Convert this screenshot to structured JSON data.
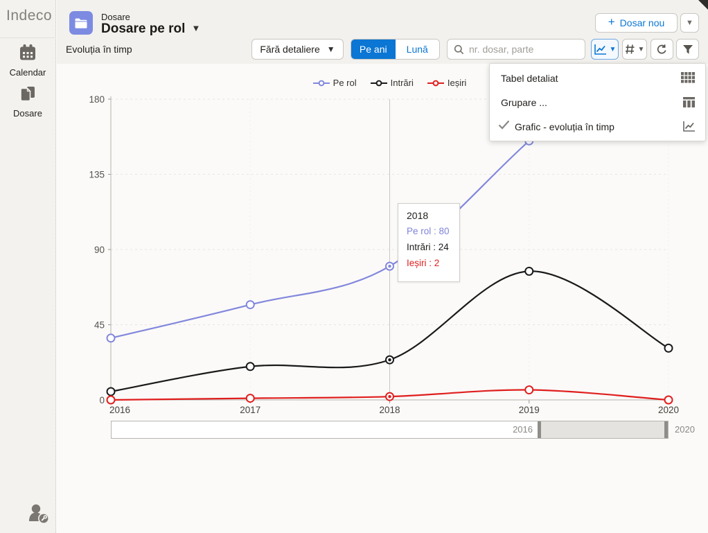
{
  "app": {
    "logo": "Indeco",
    "accent_color": "#0b76d3"
  },
  "sidebar": {
    "items": [
      {
        "label": "Calendar",
        "icon": "calendar-icon"
      },
      {
        "label": "Dosare",
        "icon": "documents-icon"
      }
    ],
    "user_icon": "user-settings-icon"
  },
  "header": {
    "context_label": "Dosare",
    "title": "Dosare pe rol",
    "subtitle": "Evoluția în timp",
    "new_button_label": "Dosar nou",
    "object_icon": "folder-icon"
  },
  "toolbar": {
    "detail_dropdown_label": "Fără detaliere",
    "period_options": [
      {
        "label": "Pe ani",
        "active": true
      },
      {
        "label": "Lună",
        "active": false
      }
    ],
    "search_placeholder": "nr. dosar, parte",
    "icon_buttons": [
      {
        "name": "chart-view-button",
        "icon": "line-chart-icon",
        "active": true
      },
      {
        "name": "numbering-button",
        "icon": "hash-icon",
        "active": false
      },
      {
        "name": "refresh-button",
        "icon": "refresh-icon",
        "active": false
      },
      {
        "name": "filter-button",
        "icon": "funnel-icon",
        "active": false
      }
    ]
  },
  "menu": {
    "items": [
      {
        "label": "Tabel detaliat",
        "icon": "table-icon",
        "checked": false
      },
      {
        "label": "Grupare ...",
        "icon": "columns-icon",
        "checked": false
      },
      {
        "label": "Grafic - evoluția în timp",
        "icon": "line-chart-icon",
        "checked": true
      }
    ]
  },
  "tooltip": {
    "title": "2018",
    "rows": [
      {
        "text": "Pe rol : 80",
        "color": "#7f84d9"
      },
      {
        "text": "Intrări : 24",
        "color": "#201e1b"
      },
      {
        "text": "Ieșiri : 2",
        "color": "#e01e1e"
      }
    ]
  },
  "chart_data": {
    "type": "line",
    "x": [
      2016,
      2017,
      2018,
      2019,
      2020
    ],
    "series": [
      {
        "name": "Pe rol",
        "color": "#8287dd",
        "values": [
          37,
          57,
          80,
          155,
          null
        ]
      },
      {
        "name": "Intrări",
        "color": "#1a1a1a",
        "values": [
          5,
          20,
          24,
          77,
          31
        ]
      },
      {
        "name": "Ieșiri",
        "color": "#e01e1e",
        "values": [
          0,
          1,
          2,
          6,
          0
        ]
      }
    ],
    "yticks": [
      0,
      45,
      90,
      135,
      180
    ],
    "ylim": [
      0,
      180
    ],
    "grid": true,
    "legend_position": "top",
    "hover_x": 2018,
    "note": "Pe rol value for 2020 hidden behind open dropdown menu"
  },
  "slider": {
    "left_label": "2016",
    "right_label": "2020"
  }
}
